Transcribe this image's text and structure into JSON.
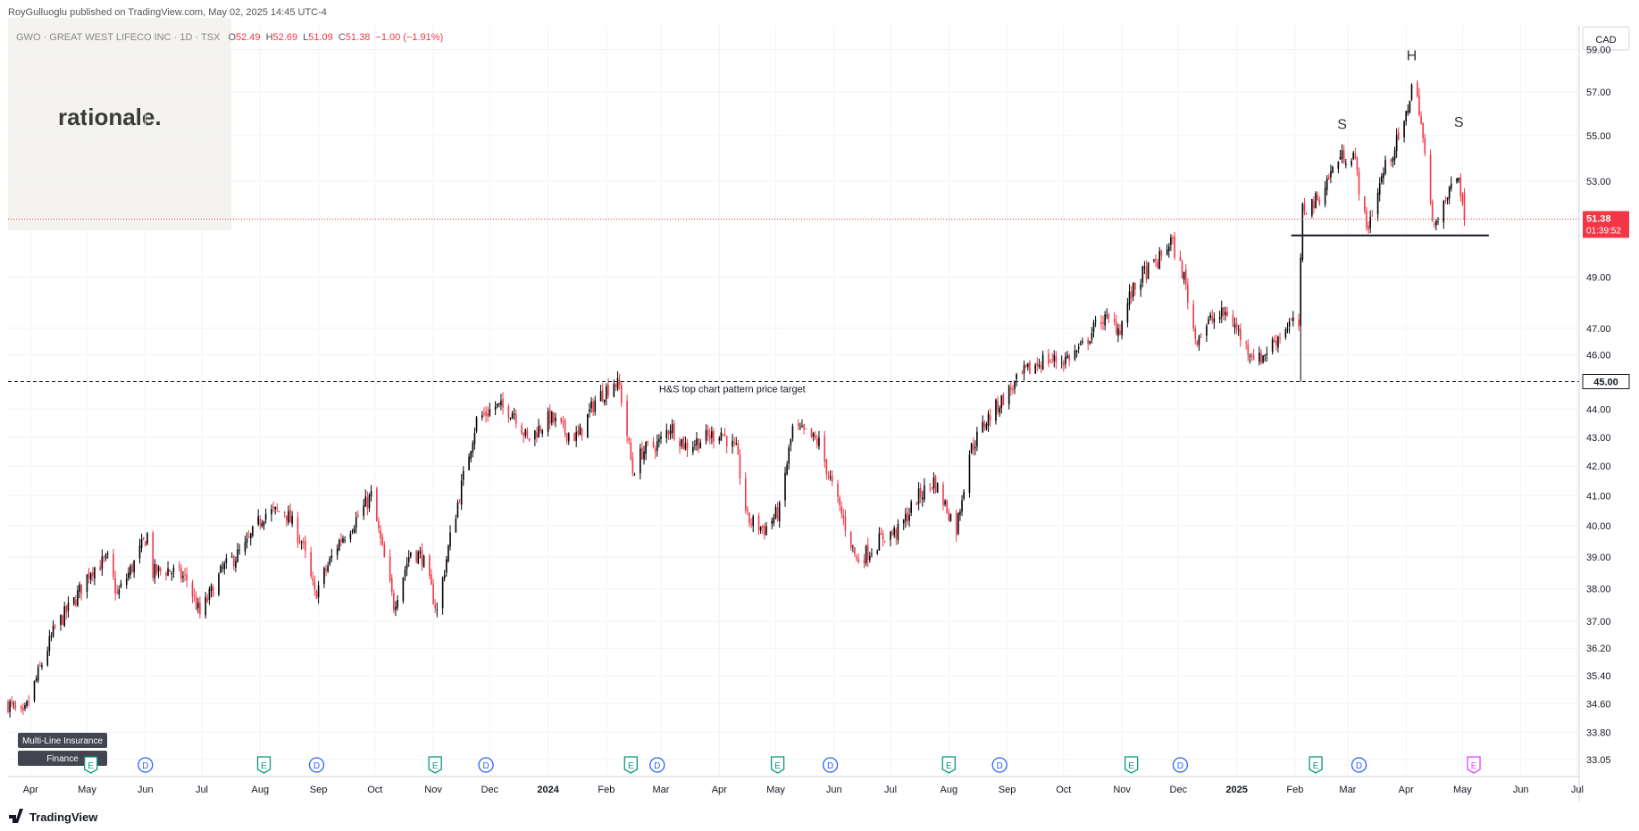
{
  "header": {
    "published": "RoyGulluoglu published on TradingView.com,  May 02, 2025 14:45 UTC-4",
    "symbol": "GWO · GREAT WEST LIFECO INC · 1D · TSX",
    "o_label": "O",
    "o_value": "52.49",
    "h_label": "H",
    "h_value": "52.69",
    "l_label": "L",
    "l_value": "51.09",
    "c_label": "C",
    "c_value": "51.38",
    "change": "−1.00 (−1.91%)"
  },
  "watermark": {
    "text": "rationale."
  },
  "currency": "CAD",
  "last_price": {
    "value": "51.38",
    "countdown": "01:39:52"
  },
  "target": {
    "value": "45.00",
    "label": "H&S top chart pattern price target"
  },
  "pattern_labels": {
    "left_shoulder": "S",
    "head": "H",
    "right_shoulder": "S"
  },
  "badges": {
    "industry": "Multi-Line Insurance",
    "sector": "Finance"
  },
  "footer": {
    "brand": "TradingView"
  },
  "events": [
    {
      "type": "E",
      "date": "2023-05-03"
    },
    {
      "type": "D",
      "date": "2023-06-01"
    },
    {
      "type": "E",
      "date": "2023-08-03"
    },
    {
      "type": "D",
      "date": "2023-08-31"
    },
    {
      "type": "E",
      "date": "2023-11-02"
    },
    {
      "type": "D",
      "date": "2023-11-29"
    },
    {
      "type": "E",
      "date": "2024-02-14"
    },
    {
      "type": "D",
      "date": "2024-02-28"
    },
    {
      "type": "E",
      "date": "2024-05-02"
    },
    {
      "type": "D",
      "date": "2024-05-30"
    },
    {
      "type": "E",
      "date": "2024-08-01"
    },
    {
      "type": "D",
      "date": "2024-08-28"
    },
    {
      "type": "E",
      "date": "2024-11-06"
    },
    {
      "type": "D",
      "date": "2024-12-02"
    },
    {
      "type": "E",
      "date": "2025-02-12"
    },
    {
      "type": "D",
      "date": "2025-03-07"
    },
    {
      "type": "E",
      "date": "2025-05-07"
    }
  ],
  "colors": {
    "up": "#000000",
    "down": "#f23645",
    "last_price": "#f23645",
    "target_bg": "#ffffff",
    "event_e": "#089981",
    "event_d": "#2962ff",
    "event_upcoming": "#e040fb",
    "watermark_bg": "#f5f3ef",
    "grid": "#f0f3fa",
    "badge_bg": "#434651"
  },
  "chart_data": {
    "type": "candlestick",
    "title": "GWO · GREAT WEST LIFECO INC · 1D · TSX",
    "interval": "1D",
    "x_axis": {
      "type": "date",
      "range": [
        "2023-03-20",
        "2025-07-02"
      ]
    },
    "y_axis": {
      "ticks": [
        "59.00",
        "57.00",
        "55.00",
        "53.00",
        "49.00",
        "47.00",
        "46.00",
        "44.00",
        "43.00",
        "42.00",
        "41.00",
        "40.00",
        "39.00",
        "38.00",
        "37.00",
        "36.20",
        "35.40",
        "34.60",
        "33.80",
        "33.05"
      ],
      "range": [
        32.6,
        60.2
      ],
      "scale": "log"
    },
    "x_ticks": [
      {
        "label": "Apr",
        "date": "2023-04-01"
      },
      {
        "label": "May",
        "date": "2023-05-01"
      },
      {
        "label": "Jun",
        "date": "2023-06-01"
      },
      {
        "label": "Jul",
        "date": "2023-07-01"
      },
      {
        "label": "Aug",
        "date": "2023-08-01"
      },
      {
        "label": "Sep",
        "date": "2023-09-01"
      },
      {
        "label": "Oct",
        "date": "2023-10-01"
      },
      {
        "label": "Nov",
        "date": "2023-11-01"
      },
      {
        "label": "Dec",
        "date": "2023-12-01"
      },
      {
        "label": "2024",
        "date": "2024-01-01"
      },
      {
        "label": "Feb",
        "date": "2024-02-01"
      },
      {
        "label": "Mar",
        "date": "2024-03-01"
      },
      {
        "label": "Apr",
        "date": "2024-04-01"
      },
      {
        "label": "May",
        "date": "2024-05-01"
      },
      {
        "label": "Jun",
        "date": "2024-06-01"
      },
      {
        "label": "Jul",
        "date": "2024-07-01"
      },
      {
        "label": "Aug",
        "date": "2024-08-01"
      },
      {
        "label": "Sep",
        "date": "2024-09-01"
      },
      {
        "label": "Oct",
        "date": "2024-10-01"
      },
      {
        "label": "Nov",
        "date": "2024-11-01"
      },
      {
        "label": "Dec",
        "date": "2024-12-01"
      },
      {
        "label": "2025",
        "date": "2025-01-01"
      },
      {
        "label": "Feb",
        "date": "2025-02-01"
      },
      {
        "label": "Mar",
        "date": "2025-03-01"
      },
      {
        "label": "Apr",
        "date": "2025-04-01"
      },
      {
        "label": "May",
        "date": "2025-05-01"
      },
      {
        "label": "Jun",
        "date": "2025-06-01"
      },
      {
        "label": "Jul",
        "date": "2025-07-01"
      }
    ],
    "price_path": [
      [
        "2023-03-20",
        34.6
      ],
      [
        "2023-03-28",
        34.2
      ],
      [
        "2023-04-06",
        35.6
      ],
      [
        "2023-04-14",
        36.8
      ],
      [
        "2023-04-24",
        37.6
      ],
      [
        "2023-05-03",
        38.6
      ],
      [
        "2023-05-12",
        38.9
      ],
      [
        "2023-05-17",
        37.8
      ],
      [
        "2023-05-26",
        38.8
      ],
      [
        "2023-06-02",
        39.7
      ],
      [
        "2023-06-05",
        38.5
      ],
      [
        "2023-06-13",
        38.6
      ],
      [
        "2023-06-23",
        38.3
      ],
      [
        "2023-06-30",
        37.2
      ],
      [
        "2023-07-12",
        38.6
      ],
      [
        "2023-07-24",
        39.3
      ],
      [
        "2023-08-03",
        40.4
      ],
      [
        "2023-08-14",
        40.5
      ],
      [
        "2023-08-23",
        39.5
      ],
      [
        "2023-08-30",
        37.8
      ],
      [
        "2023-09-12",
        39.5
      ],
      [
        "2023-09-22",
        40.3
      ],
      [
        "2023-09-29",
        41.0
      ],
      [
        "2023-10-05",
        39.2
      ],
      [
        "2023-10-11",
        37.5
      ],
      [
        "2023-10-20",
        39.2
      ],
      [
        "2023-10-26",
        39.0
      ],
      [
        "2023-11-03",
        37.3
      ],
      [
        "2023-11-10",
        39.6
      ],
      [
        "2023-11-17",
        41.6
      ],
      [
        "2023-11-24",
        43.6
      ],
      [
        "2023-12-04",
        44.1
      ],
      [
        "2023-12-14",
        43.9
      ],
      [
        "2023-12-21",
        42.9
      ],
      [
        "2024-01-02",
        43.7
      ],
      [
        "2024-01-10",
        43.2
      ],
      [
        "2024-01-17",
        43.0
      ],
      [
        "2024-01-26",
        44.3
      ],
      [
        "2024-02-05",
        45.0
      ],
      [
        "2024-02-08",
        44.8
      ],
      [
        "2024-02-15",
        41.8
      ],
      [
        "2024-02-20",
        42.5
      ],
      [
        "2024-02-29",
        42.8
      ],
      [
        "2024-03-06",
        43.4
      ],
      [
        "2024-03-14",
        42.7
      ],
      [
        "2024-03-22",
        42.9
      ],
      [
        "2024-04-02",
        43.2
      ],
      [
        "2024-04-10",
        42.5
      ],
      [
        "2024-04-16",
        40.2
      ],
      [
        "2024-04-25",
        39.9
      ],
      [
        "2024-05-03",
        40.5
      ],
      [
        "2024-05-10",
        43.3
      ],
      [
        "2024-05-17",
        43.1
      ],
      [
        "2024-05-24",
        42.8
      ],
      [
        "2024-05-31",
        41.3
      ],
      [
        "2024-06-06",
        40.2
      ],
      [
        "2024-06-13",
        38.9
      ],
      [
        "2024-06-20",
        39.2
      ],
      [
        "2024-06-28",
        39.7
      ],
      [
        "2024-07-05",
        39.8
      ],
      [
        "2024-07-15",
        40.9
      ],
      [
        "2024-07-24",
        41.5
      ],
      [
        "2024-08-05",
        39.9
      ],
      [
        "2024-08-12",
        42.5
      ],
      [
        "2024-08-21",
        43.6
      ],
      [
        "2024-08-30",
        44.4
      ],
      [
        "2024-09-10",
        45.3
      ],
      [
        "2024-09-20",
        45.8
      ],
      [
        "2024-10-01",
        45.8
      ],
      [
        "2024-10-10",
        46.2
      ],
      [
        "2024-10-21",
        47.4
      ],
      [
        "2024-10-31",
        47.0
      ],
      [
        "2024-11-05",
        48.2
      ],
      [
        "2024-11-12",
        49.1
      ],
      [
        "2024-11-20",
        49.6
      ],
      [
        "2024-11-27",
        50.5
      ],
      [
        "2024-12-04",
        49.0
      ],
      [
        "2024-12-10",
        46.6
      ],
      [
        "2024-12-18",
        47.3
      ],
      [
        "2024-12-27",
        47.6
      ],
      [
        "2025-01-06",
        46.3
      ],
      [
        "2025-01-13",
        45.8
      ],
      [
        "2025-01-22",
        46.6
      ],
      [
        "2025-01-29",
        47.2
      ],
      [
        "2025-02-03",
        47.1
      ],
      [
        "2025-02-05",
        51.8
      ],
      [
        "2025-02-13",
        52.2
      ],
      [
        "2025-02-24",
        54.0
      ],
      [
        "2025-03-04",
        54.2
      ],
      [
        "2025-03-11",
        50.9
      ],
      [
        "2025-03-20",
        53.4
      ],
      [
        "2025-03-31",
        55.4
      ],
      [
        "2025-04-04",
        57.3
      ],
      [
        "2025-04-08",
        56.3
      ],
      [
        "2025-04-14",
        51.8
      ],
      [
        "2025-04-18",
        51.1
      ],
      [
        "2025-04-24",
        52.6
      ],
      [
        "2025-04-29",
        53.2
      ],
      [
        "2025-05-02",
        51.38
      ]
    ],
    "annotations": [
      {
        "text": "S",
        "date": "2025-02-26",
        "price": 55.3
      },
      {
        "text": "H",
        "date": "2025-04-04",
        "price": 58.5
      },
      {
        "text": "S",
        "date": "2025-04-29",
        "price": 55.4
      },
      {
        "text": "H&S top chart pattern price target",
        "price": 45.0
      }
    ],
    "neckline": {
      "price": 50.7,
      "from": "2025-01-30",
      "to": "2025-05-15"
    },
    "horizontal_line": {
      "price": 45.0,
      "style": "dashed"
    },
    "last_close": 51.38,
    "grid": true
  }
}
